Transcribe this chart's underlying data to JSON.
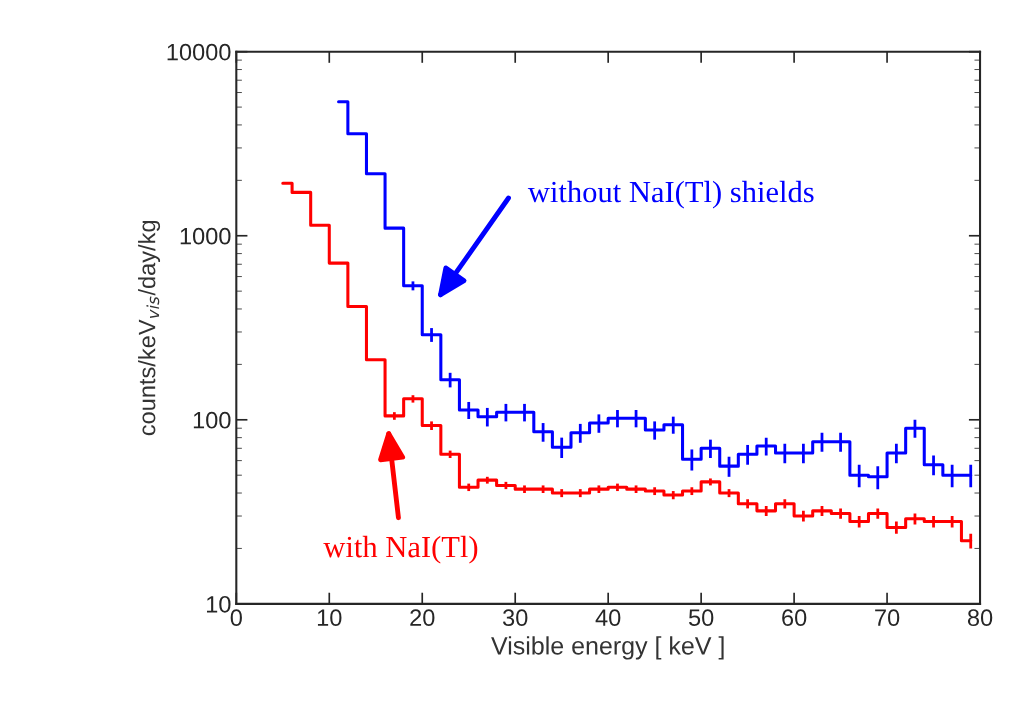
{
  "chart_data": {
    "type": "step",
    "xlabel": "Visible energy [ keV ]",
    "ylabel": "counts/keV$_{vis}$/day/kg",
    "log": "y",
    "xlim": [
      0,
      80
    ],
    "xticks": [
      0,
      10,
      20,
      30,
      40,
      50,
      60,
      70,
      80
    ],
    "ylim": [
      10,
      10000
    ],
    "yticks": [
      10,
      100,
      1000,
      10000
    ],
    "grid": false,
    "legend": false,
    "marker": "none",
    "line_style": "solid",
    "series": [
      {
        "color": "#0000ff",
        "x": [
          11,
          13,
          15,
          17,
          19,
          21,
          23,
          25,
          27,
          29,
          31,
          33,
          35,
          37,
          39,
          41,
          43,
          45,
          47,
          49,
          51,
          53,
          55,
          57,
          59,
          61,
          63,
          65,
          67,
          69,
          71,
          73,
          75,
          77,
          79
        ],
        "values": [
          5350,
          3580,
          2170,
          1100,
          535,
          290,
          165,
          113,
          104,
          110,
          110,
          86,
          71,
          85,
          96,
          102,
          102,
          88,
          94,
          61,
          70,
          56,
          65,
          72,
          66,
          66,
          76,
          76,
          50,
          49,
          66,
          90,
          57,
          50,
          50
        ],
        "errors": [
          null,
          null,
          null,
          null,
          30,
          25,
          15,
          12,
          12,
          12,
          12,
          10,
          9,
          10,
          11,
          11,
          11,
          10,
          10,
          8,
          8,
          7,
          8,
          8,
          8,
          8,
          9,
          9,
          7,
          7,
          8,
          10,
          7,
          7,
          7
        ]
      },
      {
        "color": "#ff0000",
        "x": [
          5,
          7,
          9,
          11,
          13,
          15,
          17,
          19,
          21,
          23,
          25,
          27,
          29,
          31,
          33,
          35,
          37,
          39,
          41,
          43,
          45,
          47,
          49,
          51,
          53,
          55,
          57,
          59,
          61,
          63,
          65,
          67,
          69,
          71,
          73,
          75,
          77,
          79
        ],
        "values": [
          1930,
          1720,
          1140,
          710,
          413,
          212,
          105,
          130,
          93,
          65,
          43,
          47,
          44,
          42,
          42,
          40,
          40,
          42,
          43,
          42,
          41,
          39,
          41,
          46,
          40,
          35,
          32,
          35,
          30,
          32,
          31,
          28,
          31,
          26,
          29,
          28,
          28,
          22
        ],
        "errors": [
          null,
          null,
          null,
          null,
          null,
          null,
          5,
          6,
          5,
          3,
          2,
          2,
          2,
          2,
          2,
          2,
          2,
          2,
          2,
          2,
          2,
          2,
          2,
          2,
          2,
          2,
          2,
          2,
          2,
          2,
          2,
          2,
          2,
          2,
          2,
          2,
          2,
          2
        ]
      }
    ],
    "annotations": [
      "without NaI(Tl) shields",
      "with NaI(Tl)"
    ]
  }
}
